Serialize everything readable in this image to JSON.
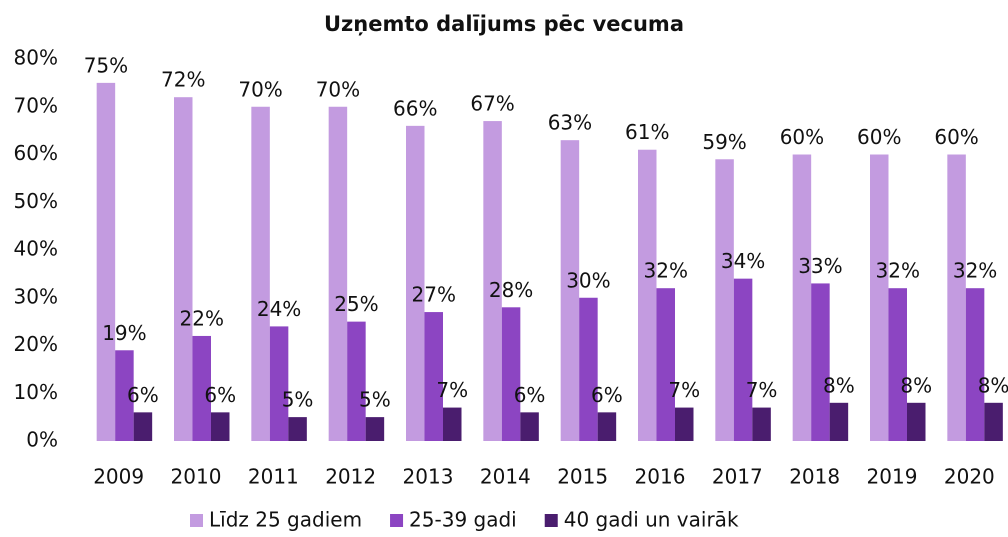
{
  "chart_data": {
    "type": "bar",
    "title": "Uzņemto dalījums pēc vecuma",
    "categories": [
      "2009",
      "2010",
      "2011",
      "2012",
      "2013",
      "2014",
      "2015",
      "2016",
      "2017",
      "2018",
      "2019",
      "2020"
    ],
    "series": [
      {
        "name": "Līdz 25 gadiem",
        "color": "#c39be0",
        "values": [
          75,
          72,
          70,
          70,
          66,
          67,
          63,
          61,
          59,
          60,
          60,
          60
        ],
        "value_labels": [
          "75%",
          "72%",
          "70%",
          "70%",
          "66%",
          "67%",
          "63%",
          "61%",
          "59%",
          "60%",
          "60%",
          "60%"
        ]
      },
      {
        "name": "25-39 gadi",
        "color": "#8c45c2",
        "values": [
          19,
          22,
          24,
          25,
          27,
          28,
          30,
          32,
          34,
          33,
          32,
          32
        ],
        "value_labels": [
          "19%",
          "22%",
          "24%",
          "25%",
          "27%",
          "28%",
          "30%",
          "32%",
          "34%",
          "33%",
          "32%",
          "32%"
        ]
      },
      {
        "name": "40 gadi un vairāk",
        "color": "#4a1d6e",
        "values": [
          6,
          6,
          5,
          5,
          7,
          6,
          6,
          7,
          7,
          8,
          8,
          8
        ],
        "value_labels": [
          "6%",
          "6%",
          "5%",
          "5%",
          "7%",
          "6%",
          "6%",
          "7%",
          "7%",
          "8%",
          "8%",
          "8%"
        ]
      }
    ],
    "ylim": [
      0,
      80
    ],
    "yticks": [
      {
        "value": 0,
        "label": "0%"
      },
      {
        "value": 10,
        "label": "10%"
      },
      {
        "value": 20,
        "label": "20%"
      },
      {
        "value": 30,
        "label": "30%"
      },
      {
        "value": 40,
        "label": "40%"
      },
      {
        "value": 50,
        "label": "50%"
      },
      {
        "value": 60,
        "label": "60%"
      },
      {
        "value": 70,
        "label": "70%"
      },
      {
        "value": 80,
        "label": "80%"
      }
    ],
    "legend": "bottom"
  }
}
